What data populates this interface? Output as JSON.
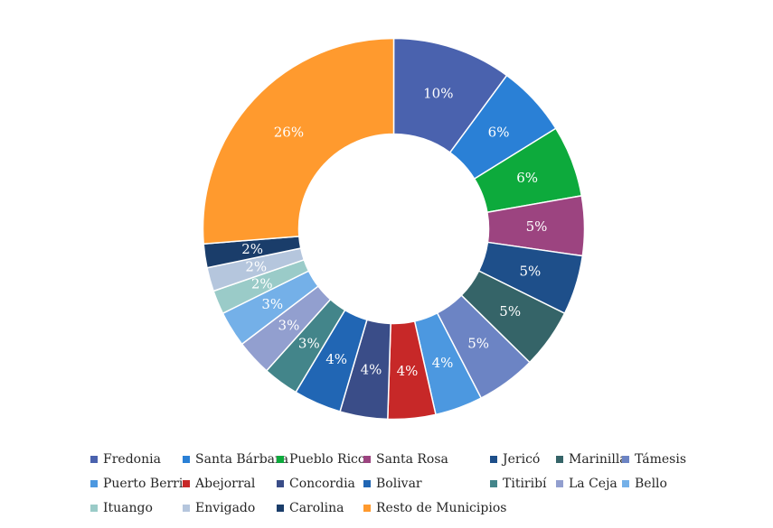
{
  "chart_data": {
    "type": "pie",
    "donut": true,
    "title": "",
    "legend_position": "bottom",
    "slices": [
      {
        "name": "Fredonia",
        "value": 10,
        "label": "10%",
        "color": "#4A62AE"
      },
      {
        "name": "Santa Bárbara",
        "value": 6,
        "label": "6%",
        "color": "#2A80D6"
      },
      {
        "name": "Pueblo Rico",
        "value": 6,
        "label": "6%",
        "color": "#0DAA3C"
      },
      {
        "name": "Santa Rosa",
        "value": 5,
        "label": "5%",
        "color": "#9C4480"
      },
      {
        "name": "Jericó",
        "value": 5,
        "label": "5%",
        "color": "#1E4F8A"
      },
      {
        "name": "Marinilla",
        "value": 5,
        "label": "5%",
        "color": "#356468"
      },
      {
        "name": "Támesis",
        "value": 5,
        "label": "5%",
        "color": "#6C84C4"
      },
      {
        "name": "Puerto Berrio",
        "value": 4,
        "label": "4%",
        "color": "#4C98E0"
      },
      {
        "name": "Abejorral",
        "value": 4,
        "label": "4%",
        "color": "#C72828"
      },
      {
        "name": "Concordia",
        "value": 4,
        "label": "4%",
        "color": "#3A4D88"
      },
      {
        "name": "Bolivar",
        "value": 4,
        "label": "4%",
        "color": "#2166B4"
      },
      {
        "name": "Titiribí",
        "value": 3,
        "label": "3%",
        "color": "#43858A"
      },
      {
        "name": "La Ceja",
        "value": 3,
        "label": "3%",
        "color": "#929FCF"
      },
      {
        "name": "Bello",
        "value": 3,
        "label": "3%",
        "color": "#74B0E8"
      },
      {
        "name": "Ituango",
        "value": 2,
        "label": "2%",
        "color": "#9ACBC8"
      },
      {
        "name": "Envigado",
        "value": 2,
        "label": "2%",
        "color": "#B5C6DD"
      },
      {
        "name": "Carolina",
        "value": 2,
        "label": "2%",
        "color": "#1A3D6A"
      },
      {
        "name": "Resto de Municipios",
        "value": 26,
        "label": "26%",
        "color": "#FF9A2E"
      }
    ]
  }
}
